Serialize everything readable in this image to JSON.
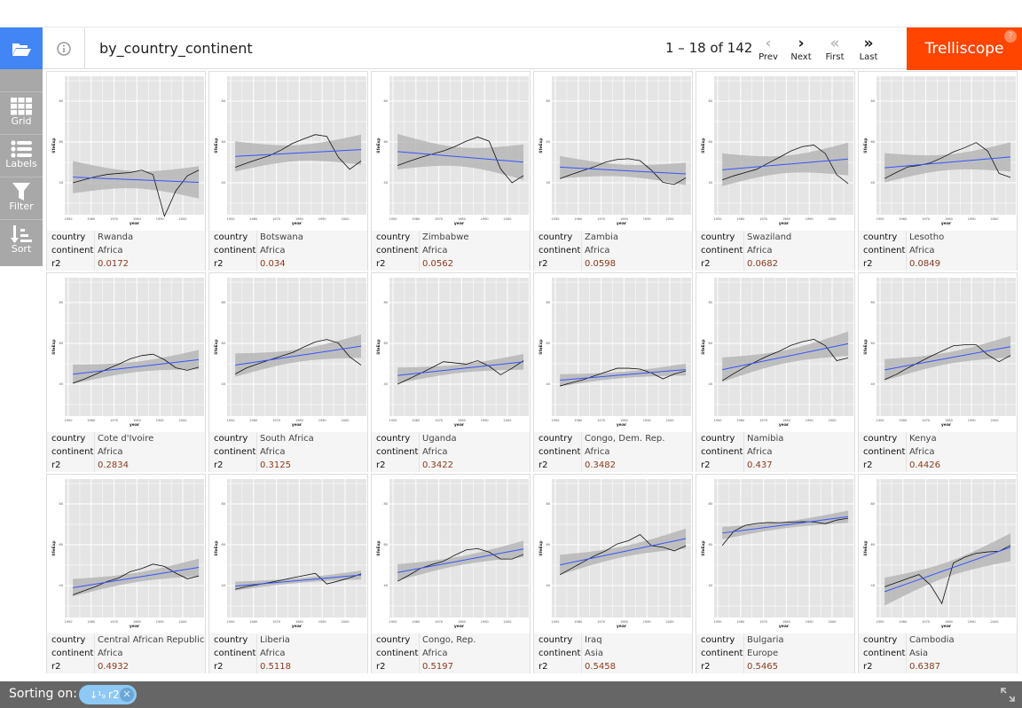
{
  "header": {
    "title": "by_country_continent",
    "page_info": "1 – 18 of 142",
    "prev": "Prev",
    "next": "Next",
    "first": "First",
    "last": "Last",
    "brand": "Trelliscope",
    "help": "?"
  },
  "sidebar": {
    "items": [
      {
        "label": "Grid",
        "icon": "grid-icon"
      },
      {
        "label": "Labels",
        "icon": "list-icon"
      },
      {
        "label": "Filter",
        "icon": "filter-icon"
      },
      {
        "label": "Sort",
        "icon": "sort-icon"
      }
    ]
  },
  "colors": {
    "accent": "#4285f4",
    "brand": "#ff4500",
    "fit": "#3355ff",
    "r2": "#8b3a1a"
  },
  "plot": {
    "xlabel": "year",
    "ylabel": "lifeExp",
    "xticks": [
      1950,
      1960,
      1970,
      1980,
      1990,
      2000
    ],
    "yticks": [
      40,
      60,
      80
    ],
    "years": [
      1952,
      1957,
      1962,
      1967,
      1972,
      1977,
      1982,
      1987,
      1992,
      1997,
      2002,
      2007
    ]
  },
  "label_keys": {
    "country": "country",
    "continent": "continent",
    "r2": "r2"
  },
  "panels": [
    {
      "country": "Rwanda",
      "continent": "Africa",
      "r2": "0.0172",
      "lifeExp": [
        40.0,
        41.5,
        43.0,
        44.1,
        44.6,
        45.0,
        46.2,
        44.0,
        23.6,
        36.1,
        43.4,
        46.2
      ]
    },
    {
      "country": "Botswana",
      "continent": "Africa",
      "r2": "0.034",
      "lifeExp": [
        47.6,
        49.6,
        51.5,
        53.3,
        56.0,
        59.3,
        61.5,
        63.6,
        62.7,
        52.6,
        46.6,
        50.7
      ]
    },
    {
      "country": "Zimbabwe",
      "continent": "Africa",
      "r2": "0.0562",
      "lifeExp": [
        48.5,
        50.5,
        52.4,
        54.0,
        55.6,
        57.7,
        60.4,
        62.4,
        60.4,
        46.8,
        40.0,
        43.5
      ]
    },
    {
      "country": "Zambia",
      "continent": "Africa",
      "r2": "0.0598",
      "lifeExp": [
        42.0,
        44.1,
        46.0,
        47.8,
        50.1,
        51.4,
        51.8,
        50.8,
        46.1,
        40.2,
        39.2,
        42.4
      ]
    },
    {
      "country": "Swaziland",
      "continent": "Africa",
      "r2": "0.0682",
      "lifeExp": [
        41.4,
        43.4,
        45.0,
        46.6,
        49.6,
        52.5,
        55.6,
        57.7,
        58.5,
        54.3,
        43.9,
        39.6
      ]
    },
    {
      "country": "Lesotho",
      "continent": "Africa",
      "r2": "0.0849",
      "lifeExp": [
        42.1,
        45.0,
        47.7,
        48.5,
        49.8,
        52.2,
        55.1,
        57.2,
        59.7,
        55.6,
        44.6,
        42.6
      ]
    },
    {
      "country": "Cote d'Ivoire",
      "continent": "Africa",
      "r2": "0.2834",
      "lifeExp": [
        40.5,
        42.5,
        44.9,
        47.4,
        49.8,
        52.4,
        54.0,
        54.7,
        52.0,
        48.0,
        46.8,
        48.3
      ]
    },
    {
      "country": "South Africa",
      "continent": "Africa",
      "r2": "0.3125",
      "lifeExp": [
        45.0,
        48.0,
        50.0,
        51.9,
        53.7,
        55.5,
        58.2,
        60.7,
        61.9,
        60.2,
        53.4,
        49.3
      ]
    },
    {
      "country": "Uganda",
      "continent": "Africa",
      "r2": "0.3422",
      "lifeExp": [
        40.0,
        42.6,
        45.3,
        48.1,
        51.0,
        50.4,
        49.8,
        51.5,
        48.8,
        44.6,
        47.8,
        51.5
      ]
    },
    {
      "country": "Congo, Dem. Rep.",
      "continent": "Africa",
      "r2": "0.3482",
      "lifeExp": [
        39.1,
        40.7,
        42.1,
        44.1,
        45.9,
        47.8,
        47.8,
        47.4,
        45.5,
        42.6,
        45.0,
        46.5
      ]
    },
    {
      "country": "Namibia",
      "continent": "Africa",
      "r2": "0.437",
      "lifeExp": [
        41.7,
        45.2,
        48.4,
        51.2,
        53.9,
        56.2,
        59.0,
        60.8,
        62.0,
        58.9,
        51.5,
        52.9
      ]
    },
    {
      "country": "Kenya",
      "continent": "Africa",
      "r2": "0.4426",
      "lifeExp": [
        42.3,
        44.7,
        47.9,
        50.7,
        53.6,
        56.2,
        58.8,
        59.3,
        59.3,
        54.4,
        51.0,
        54.1
      ]
    },
    {
      "country": "Central African Republic",
      "continent": "Africa",
      "r2": "0.4932",
      "lifeExp": [
        35.5,
        37.5,
        39.5,
        42.0,
        43.7,
        46.8,
        48.3,
        50.5,
        49.4,
        46.1,
        43.3,
        44.7
      ]
    },
    {
      "country": "Liberia",
      "continent": "Africa",
      "r2": "0.5118",
      "lifeExp": [
        38.2,
        39.5,
        40.5,
        41.5,
        42.6,
        43.8,
        44.9,
        46.0,
        40.8,
        42.2,
        43.8,
        45.7
      ]
    },
    {
      "country": "Congo, Rep.",
      "continent": "Africa",
      "r2": "0.5197",
      "lifeExp": [
        42.1,
        45.1,
        48.4,
        50.3,
        51.9,
        54.9,
        57.5,
        58.1,
        56.4,
        53.0,
        53.0,
        55.3
      ]
    },
    {
      "country": "Iraq",
      "continent": "Asia",
      "r2": "0.5458",
      "lifeExp": [
        45.3,
        48.4,
        51.5,
        54.5,
        57.0,
        60.4,
        62.0,
        65.0,
        59.5,
        58.8,
        57.0,
        59.5
      ]
    },
    {
      "country": "Bulgaria",
      "continent": "Europe",
      "r2": "0.5465",
      "lifeExp": [
        59.6,
        66.6,
        69.5,
        70.4,
        70.9,
        70.8,
        71.1,
        71.3,
        71.2,
        70.3,
        72.1,
        73.0
      ]
    },
    {
      "country": "Cambodia",
      "continent": "Asia",
      "r2": "0.6387",
      "lifeExp": [
        39.4,
        41.4,
        43.4,
        45.4,
        40.3,
        31.2,
        51.0,
        53.9,
        55.8,
        56.5,
        56.8,
        59.7
      ]
    }
  ],
  "footer": {
    "sorting_label": "Sorting on:",
    "sort_var": "r2",
    "sort_icon": "sort-ascending-icon"
  }
}
